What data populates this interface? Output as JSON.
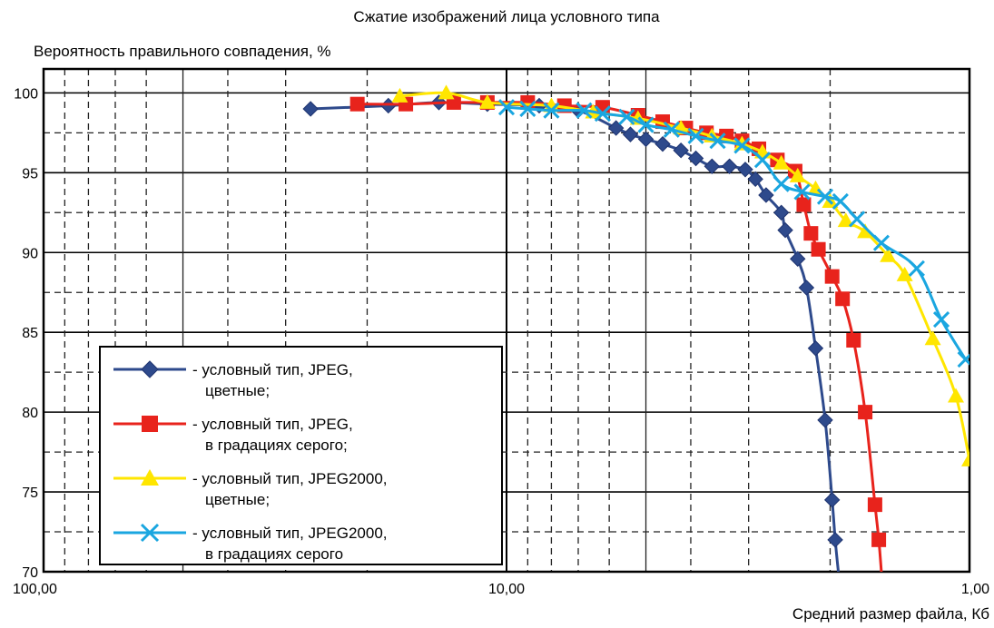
{
  "chart_data": {
    "type": "line",
    "title": "Сжатие изображений лица  условного типа",
    "ylabel": "Вероятность правильного совпадения, %",
    "xlabel": "Средний размер файла, Кб",
    "x_scale": "log",
    "x_reversed": true,
    "xlim": [
      100,
      1
    ],
    "ylim": [
      70,
      101.5
    ],
    "x_ticks": [
      100,
      10,
      1
    ],
    "x_tick_labels": [
      "100,00",
      "10,00",
      "1,00"
    ],
    "y_ticks": [
      70,
      75,
      80,
      85,
      90,
      95,
      100
    ],
    "y_tick_labels": [
      "70",
      "75",
      "80",
      "85",
      "90",
      "95",
      "100"
    ],
    "grid": true,
    "legend_position": "bottom-left",
    "series": [
      {
        "name": "- условный тип,   JPEG,\nцветные;",
        "color": "#2e4a8c",
        "marker": "diamond",
        "points": [
          [
            26.5,
            99.0
          ],
          [
            18.0,
            99.2
          ],
          [
            14.0,
            99.4
          ],
          [
            11.0,
            99.3
          ],
          [
            8.5,
            99.2
          ],
          [
            7.0,
            98.9
          ],
          [
            5.8,
            97.8
          ],
          [
            5.4,
            97.4
          ],
          [
            5.0,
            97.1
          ],
          [
            4.6,
            96.8
          ],
          [
            4.2,
            96.4
          ],
          [
            3.9,
            95.9
          ],
          [
            3.6,
            95.4
          ],
          [
            3.3,
            95.4
          ],
          [
            3.05,
            95.2
          ],
          [
            2.9,
            94.6
          ],
          [
            2.75,
            93.6
          ],
          [
            2.55,
            92.5
          ],
          [
            2.5,
            91.4
          ],
          [
            2.35,
            89.6
          ],
          [
            2.25,
            87.8
          ],
          [
            2.15,
            84.0
          ],
          [
            2.05,
            79.5
          ],
          [
            1.98,
            74.5
          ],
          [
            1.95,
            72.0
          ],
          [
            1.92,
            70.0
          ]
        ]
      },
      {
        "name": "- условный тип,   JPEG,\nв градациях серого;",
        "color": "#e8231c",
        "marker": "square",
        "points": [
          [
            21.0,
            99.3
          ],
          [
            16.5,
            99.3
          ],
          [
            13.0,
            99.4
          ],
          [
            11.0,
            99.4
          ],
          [
            9.0,
            99.4
          ],
          [
            7.5,
            99.2
          ],
          [
            6.2,
            99.1
          ],
          [
            5.2,
            98.6
          ],
          [
            4.6,
            98.2
          ],
          [
            4.1,
            97.8
          ],
          [
            3.7,
            97.5
          ],
          [
            3.35,
            97.3
          ],
          [
            3.1,
            97.0
          ],
          [
            2.85,
            96.5
          ],
          [
            2.6,
            95.8
          ],
          [
            2.38,
            95.1
          ],
          [
            2.28,
            93.0
          ],
          [
            2.2,
            91.2
          ],
          [
            2.12,
            90.2
          ],
          [
            1.98,
            88.5
          ],
          [
            1.88,
            87.1
          ],
          [
            1.78,
            84.5
          ],
          [
            1.68,
            80.0
          ],
          [
            1.6,
            74.2
          ],
          [
            1.57,
            72.0
          ],
          [
            1.55,
            70.0
          ]
        ]
      },
      {
        "name": "- условный тип,   JPEG2000,\nцветные;",
        "color": "#ffe600",
        "marker": "triangle",
        "points": [
          [
            17.0,
            99.8
          ],
          [
            13.5,
            100.0
          ],
          [
            11.0,
            99.4
          ],
          [
            8.0,
            99.2
          ],
          [
            6.5,
            98.8
          ],
          [
            5.2,
            98.4
          ],
          [
            4.2,
            97.8
          ],
          [
            3.6,
            97.3
          ],
          [
            3.1,
            96.8
          ],
          [
            2.8,
            96.3
          ],
          [
            2.55,
            95.6
          ],
          [
            2.35,
            94.8
          ],
          [
            2.15,
            94.0
          ],
          [
            2.0,
            93.2
          ],
          [
            1.85,
            92.0
          ],
          [
            1.68,
            91.3
          ],
          [
            1.5,
            89.8
          ],
          [
            1.38,
            88.6
          ],
          [
            1.2,
            84.6
          ],
          [
            1.07,
            81.0
          ],
          [
            1.0,
            77.0
          ]
        ]
      },
      {
        "name": "- условный тип,   JPEG2000,\nв градациях серого",
        "color": "#1aa6e0",
        "marker": "x",
        "points": [
          [
            10.0,
            99.1
          ],
          [
            9.0,
            99.0
          ],
          [
            8.0,
            98.9
          ],
          [
            6.8,
            98.9
          ],
          [
            6.2,
            98.7
          ],
          [
            5.5,
            98.5
          ],
          [
            5.0,
            98.0
          ],
          [
            4.4,
            97.7
          ],
          [
            3.9,
            97.3
          ],
          [
            3.5,
            97.0
          ],
          [
            3.1,
            96.7
          ],
          [
            2.8,
            95.8
          ],
          [
            2.55,
            94.3
          ],
          [
            2.3,
            93.8
          ],
          [
            2.05,
            93.5
          ],
          [
            1.9,
            93.2
          ],
          [
            1.75,
            92.1
          ],
          [
            1.55,
            90.6
          ],
          [
            1.3,
            89.0
          ],
          [
            1.15,
            85.8
          ],
          [
            1.02,
            83.3
          ]
        ]
      }
    ]
  }
}
